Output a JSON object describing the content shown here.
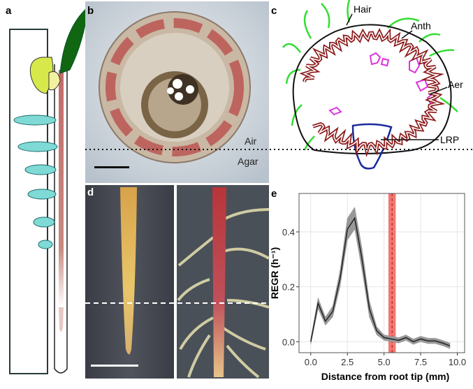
{
  "panel_labels": [
    "a",
    "b",
    "c",
    "d",
    "e"
  ],
  "panel_b": {
    "air": "Air",
    "agar": "Agar"
  },
  "panel_c": {
    "hair": "Hair",
    "anth": "Anth",
    "aer": "Aer",
    "lrp": "LRP"
  },
  "chart_data": {
    "type": "line",
    "xlabel": "Distance from root tip (mm)",
    "ylabel": "REGR (h⁻¹)",
    "x": [
      0,
      0.5,
      1,
      1.5,
      2,
      2.5,
      3,
      3.5,
      4,
      4.5,
      5,
      5.5,
      6,
      6.5,
      7,
      7.5,
      8,
      8.5,
      9,
      9.5
    ],
    "series": [
      {
        "name": "REGR",
        "color": "#222222",
        "values": [
          0,
          0.14,
          0.075,
          0.11,
          0.23,
          0.41,
          0.45,
          0.3,
          0.12,
          0.04,
          0.015,
          0.01,
          0.005,
          0.015,
          0,
          0.01,
          0.003,
          0.003,
          -0.005,
          -0.015
        ],
        "errors": [
          0.01,
          0.02,
          0.015,
          0.02,
          0.03,
          0.04,
          0.04,
          0.04,
          0.03,
          0.015,
          0.01,
          0.01,
          0.01,
          0.01,
          0.01,
          0.01,
          0.01,
          0.01,
          0.01,
          0.01
        ],
        "error_color": "#999999"
      }
    ],
    "xlim": [
      -0.8,
      10.5
    ],
    "ylim": [
      -0.04,
      0.54
    ],
    "xticks": [
      {
        "value": 0,
        "label": "0.0"
      },
      {
        "value": 2.5,
        "label": "2.5"
      },
      {
        "value": 5,
        "label": "5.0"
      },
      {
        "value": 7.5,
        "label": "7.5"
      },
      {
        "value": 10,
        "label": "10.0"
      }
    ],
    "yticks": [
      {
        "value": 0,
        "label": "0.0"
      },
      {
        "value": 0.2,
        "label": "0.2"
      },
      {
        "value": 0.4,
        "label": "0.4"
      }
    ],
    "grid": true,
    "vband": [
      5.3,
      5.8
    ],
    "vband_color": "#f0605a",
    "vline": 5.55
  }
}
